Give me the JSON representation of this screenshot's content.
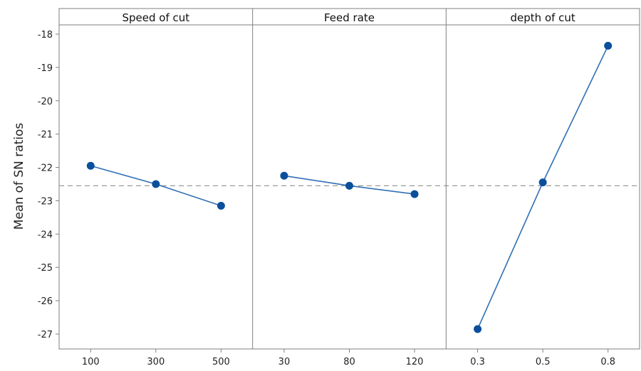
{
  "chart_data": {
    "type": "line",
    "title": "",
    "ylabel": "Mean of SN ratios",
    "ylim": [
      -27.4,
      -17.75
    ],
    "yticks": [
      -18,
      -19,
      -20,
      -21,
      -22,
      -23,
      -24,
      -25,
      -26,
      -27
    ],
    "ytick_labels": [
      "-18",
      "-19",
      "-20",
      "-21",
      "-22",
      "-23",
      "-24",
      "-25",
      "-26",
      "-27"
    ],
    "reference_line": -22.55,
    "colors": {
      "line": "#2f6fb5",
      "marker": "#0b4f9c",
      "reference": "#999999",
      "frame": "#7f7f7f"
    },
    "panels": [
      {
        "name": "Speed of cut",
        "x": [
          "100",
          "300",
          "500"
        ],
        "values": [
          -21.95,
          -22.5,
          -23.15
        ]
      },
      {
        "name": "Feed rate",
        "x": [
          "30",
          "80",
          "120"
        ],
        "values": [
          -22.25,
          -22.55,
          -22.8
        ]
      },
      {
        "name": "depth of cut",
        "x": [
          "0.3",
          "0.5",
          "0.8"
        ],
        "values": [
          -26.85,
          -22.45,
          -18.35
        ]
      }
    ]
  }
}
